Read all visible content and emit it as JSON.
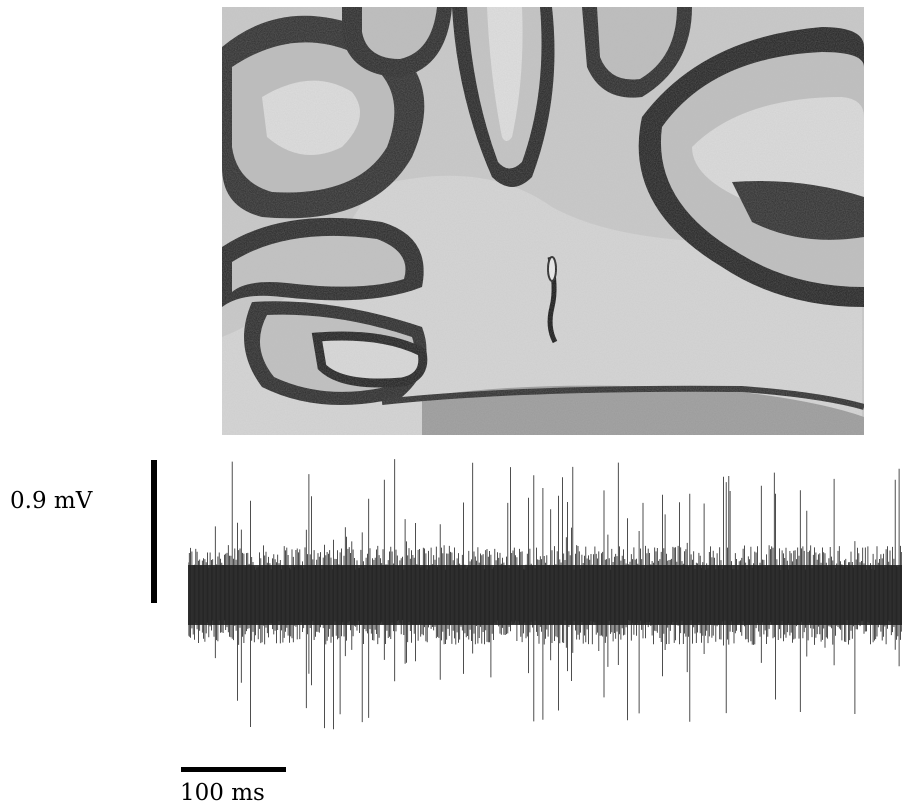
{
  "figure": {
    "voltage_scale_label": "0.9  mV",
    "time_scale_label": "100 ms",
    "image_subject": "cerebellum-tissue-section",
    "colors": {
      "tissue_dark": "#1e1e1e",
      "tissue_mid": "#bdbdbd",
      "tissue_light": "#e2e2e2",
      "trace": "#222222"
    }
  }
}
